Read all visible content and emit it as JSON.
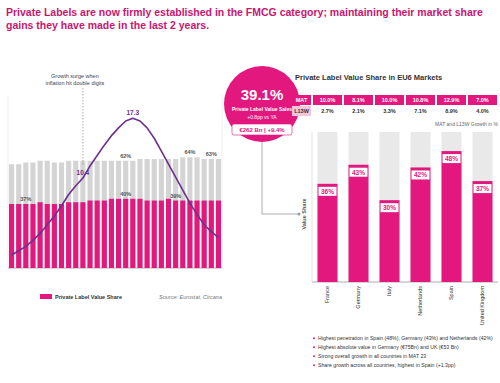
{
  "title": "Private Labels are now firmly established in the FMCG category; maintaining their market share gains they have made in the last 2 years.",
  "callout": {
    "value": "39.1%",
    "label": "Private Label Value Sales",
    "change": "+0.8pp vs YA",
    "sales": "€262 Bn | +9.4%"
  },
  "table": {
    "rows": [
      [
        "MAT",
        "10.0%",
        "8.1%",
        "10.0%",
        "10.8%",
        "12.9%",
        "7.0%"
      ],
      [
        "L13W",
        "2.7%",
        "2.1%",
        "3.3%",
        "7.1%",
        "8.9%",
        "4.0%"
      ]
    ]
  },
  "notes": [
    "Highest penetration in Spain (48%), Germany (43%) and Netherlands (42%)",
    "Highest absolute value in Germany (€75Bn) and UK (€53 Bn)",
    "Strong overall growth in all countries in MAT 23",
    "Share growth across all countries, highest in Spain (+1.3pp)"
  ],
  "chart_data": [
    {
      "type": "bar",
      "annotations": [
        "Growth surge when",
        "inflation hit double digits"
      ],
      "source": "Source: Eurostat, Circana",
      "categories": [
        null,
        null,
        null,
        null,
        null,
        null,
        null,
        null,
        null,
        null,
        null,
        null,
        null,
        null,
        null,
        null,
        null,
        null,
        null,
        null,
        null,
        null,
        null,
        null,
        null,
        null,
        null,
        null,
        null,
        null
      ],
      "ylim": [
        0,
        100
      ],
      "y2lim": [
        0,
        20
      ],
      "tick_labels": false,
      "stacked": false,
      "data_labels": true,
      "legend": "bottom",
      "series": [
        {
          "color": "#d4d4d4",
          "values": [
            60,
            60,
            61,
            61,
            62,
            62,
            61,
            61,
            62,
            62,
            62,
            62,
            62,
            62,
            62,
            62,
            62,
            62,
            63,
            63,
            63,
            63,
            63,
            63,
            64,
            64,
            64,
            63,
            63,
            63
          ],
          "value_labels": [
            null,
            null,
            null,
            null,
            null,
            null,
            null,
            null,
            null,
            null,
            null,
            null,
            null,
            null,
            null,
            null,
            "62%",
            null,
            null,
            null,
            null,
            null,
            null,
            null,
            null,
            "64%",
            null,
            null,
            "63%",
            null
          ]
        },
        {
          "name": "Private Label Value Share",
          "color": "#e2187f",
          "values": [
            37,
            37,
            37,
            37,
            38,
            37,
            37,
            37,
            38,
            38,
            38,
            39,
            39,
            39,
            40,
            40,
            40,
            40,
            40,
            39,
            39,
            39,
            40,
            39,
            39,
            39,
            39,
            39,
            39,
            39
          ],
          "value_labels": [
            null,
            null,
            "37%",
            null,
            null,
            null,
            null,
            null,
            null,
            null,
            null,
            null,
            null,
            null,
            null,
            null,
            "40%",
            null,
            null,
            null,
            null,
            null,
            null,
            "39%",
            null,
            null,
            null,
            null,
            null,
            null
          ]
        },
        {
          "type": "line",
          "axis": "y2",
          "color": "#6d2f8e",
          "values": [
            1.5,
            2.0,
            2.5,
            3.2,
            4.0,
            5.0,
            6.0,
            7.2,
            8.5,
            9.5,
            10.4,
            11.8,
            13.0,
            14.2,
            15.3,
            16.2,
            17.0,
            17.3,
            17.0,
            16.2,
            15.0,
            13.5,
            12.0,
            10.5,
            9.0,
            7.5,
            6.2,
            5.0,
            4.2,
            3.5
          ],
          "value_labels": [
            null,
            null,
            null,
            null,
            null,
            null,
            null,
            null,
            null,
            null,
            "10.4",
            null,
            null,
            null,
            null,
            null,
            null,
            "17.3",
            null,
            null,
            null,
            null,
            null,
            null,
            null,
            null,
            null,
            null,
            null,
            null
          ]
        }
      ]
    },
    {
      "type": "bar",
      "title": "Private Label Value Share in EU6 Markets",
      "subtitle": "MAT and L13W Growth in %",
      "ylabel": "Value Share",
      "categories": [
        "France",
        "Germany",
        "Italy",
        "Netherlands",
        "Spain",
        "United Kingdom"
      ],
      "values": [
        36,
        43,
        30,
        42,
        48,
        37
      ],
      "value_labels": [
        "36%",
        "43%",
        "30%",
        "42%",
        "48%",
        "37%"
      ],
      "color": "#e2187f",
      "ylim": [
        0,
        55
      ],
      "tick_labels": "x",
      "data_labels": true
    }
  ]
}
